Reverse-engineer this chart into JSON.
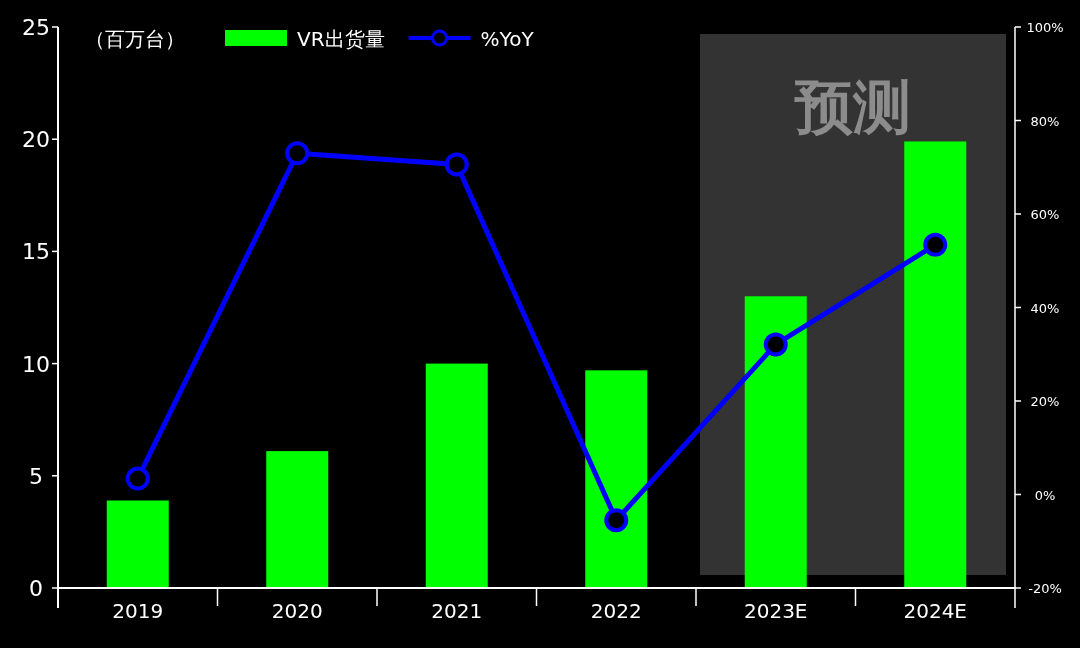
{
  "chart_data": {
    "type": "bar",
    "ylabel": "（百万台）",
    "categories": [
      "2019",
      "2020",
      "2021",
      "2022",
      "2023E",
      "2024E"
    ],
    "series": [
      {
        "name": "VR出货量",
        "color": "#00ff00",
        "values": [
          3.9,
          6.1,
          10.0,
          9.7,
          13.0,
          19.9
        ]
      },
      {
        "name": "%YoY",
        "type": "line",
        "color": "#0000ff",
        "axis": "y2",
        "marker": "circle",
        "values": [
          3.4,
          73,
          70.6,
          -5.5,
          32.1,
          53.4
        ]
      }
    ],
    "ylim": [
      0,
      25
    ],
    "yticks": [
      0,
      5,
      10,
      15,
      20,
      25
    ],
    "y2lim": [
      -20,
      100
    ],
    "y2ticks": [
      {
        "value": -20,
        "label": "-20%"
      },
      {
        "value": 0,
        "label": "0%"
      },
      {
        "value": 20,
        "label": "20%"
      },
      {
        "value": 40,
        "label": "40%"
      },
      {
        "value": 60,
        "label": "60%"
      },
      {
        "value": 80,
        "label": "80%"
      },
      {
        "value": 100,
        "label": "100%"
      }
    ],
    "bands": [
      {
        "axis": "x",
        "from": "2023E",
        "to": "2024E",
        "label": "预测",
        "color": "#333333"
      }
    ],
    "legend": "top"
  }
}
